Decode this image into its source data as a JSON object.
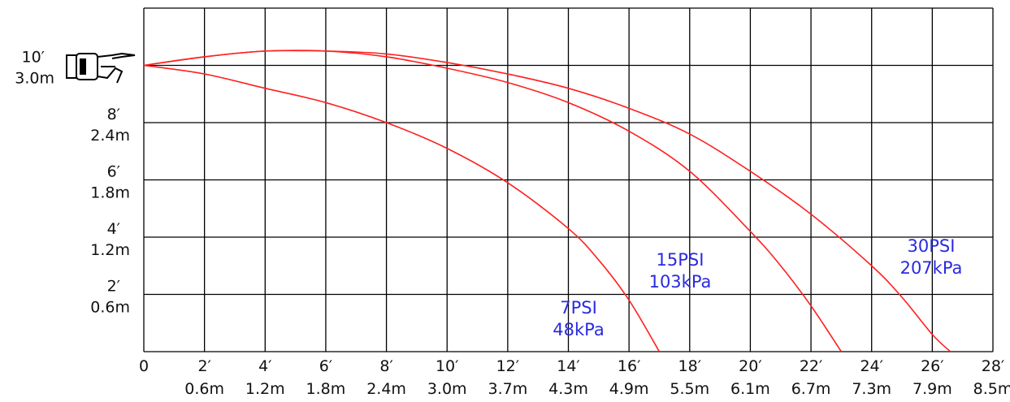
{
  "chart_data": {
    "type": "line",
    "xlim": [
      0,
      28
    ],
    "ylim": [
      0,
      10
    ],
    "grid": true,
    "x_ticks": [
      {
        "value": 0,
        "ft": "0",
        "m": ""
      },
      {
        "value": 2,
        "ft": "2′",
        "m": "0.6m"
      },
      {
        "value": 4,
        "ft": "4′",
        "m": "1.2m"
      },
      {
        "value": 6,
        "ft": "6′",
        "m": "1.8m"
      },
      {
        "value": 8,
        "ft": "8′",
        "m": "2.4m"
      },
      {
        "value": 10,
        "ft": "10′",
        "m": "3.0m"
      },
      {
        "value": 12,
        "ft": "12′",
        "m": "3.7m"
      },
      {
        "value": 14,
        "ft": "14′",
        "m": "4.3m"
      },
      {
        "value": 16,
        "ft": "16′",
        "m": "4.9m"
      },
      {
        "value": 18,
        "ft": "18′",
        "m": "5.5m"
      },
      {
        "value": 20,
        "ft": "20′",
        "m": "6.1m"
      },
      {
        "value": 22,
        "ft": "22′",
        "m": "6.7m"
      },
      {
        "value": 24,
        "ft": "24′",
        "m": "7.3m"
      },
      {
        "value": 26,
        "ft": "26′",
        "m": "7.9m"
      },
      {
        "value": 28,
        "ft": "28′",
        "m": "8.5m"
      }
    ],
    "y_ticks": [
      {
        "value": 10,
        "ft": "10′",
        "m": "3.0m"
      },
      {
        "value": 8,
        "ft": "8′",
        "m": "2.4m"
      },
      {
        "value": 6,
        "ft": "6′",
        "m": "1.8m"
      },
      {
        "value": 4,
        "ft": "4′",
        "m": "1.2m"
      },
      {
        "value": 2,
        "ft": "2′",
        "m": "0.6m"
      }
    ],
    "series": [
      {
        "name": "7PSI 48kPa",
        "label_lines": [
          "7PSI",
          "48kPa"
        ],
        "x": [
          0,
          2,
          4,
          6,
          8,
          10,
          12,
          14,
          15,
          16,
          17
        ],
        "y": [
          10,
          9.7,
          9.2,
          8.7,
          8.0,
          7.1,
          5.9,
          4.3,
          3.2,
          1.8,
          0
        ]
      },
      {
        "name": "15PSI 103kPa",
        "label_lines": [
          "15PSI",
          "103kPa"
        ],
        "x": [
          0,
          2,
          4,
          6,
          8,
          10,
          12,
          14,
          16,
          18,
          20,
          21,
          22,
          23
        ],
        "y": [
          10,
          10.3,
          10.5,
          10.5,
          10.3,
          9.9,
          9.4,
          8.7,
          7.7,
          6.3,
          4.2,
          3.0,
          1.6,
          0
        ]
      },
      {
        "name": "30PSI 207kPa",
        "label_lines": [
          "30PSI",
          "207kPa"
        ],
        "x": [
          0,
          2,
          4,
          6,
          8,
          10,
          12,
          14,
          16,
          18,
          20,
          22,
          24,
          25,
          26,
          26.6
        ],
        "y": [
          10,
          10.3,
          10.5,
          10.5,
          10.4,
          10.1,
          9.7,
          9.2,
          8.5,
          7.6,
          6.3,
          4.8,
          3.0,
          1.9,
          0.6,
          0
        ]
      }
    ],
    "colors": {
      "curve": "#ff2020",
      "label": "#2a2ae0",
      "grid": "#000000"
    }
  }
}
